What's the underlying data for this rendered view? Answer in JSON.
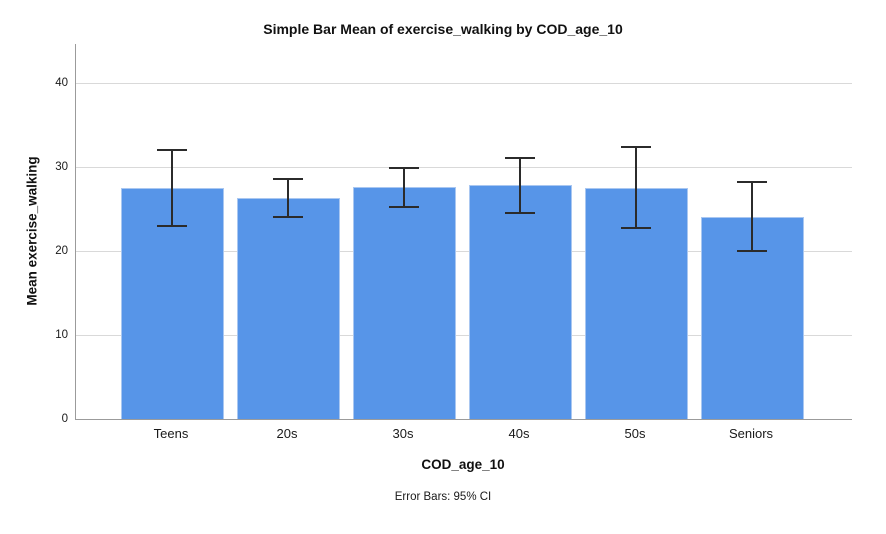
{
  "chart_data": {
    "type": "bar",
    "title": "Simple Bar Mean of exercise_walking by COD_age_10",
    "xlabel": "COD_age_10",
    "ylabel": "Mean exercise_walking",
    "footnote": "Error Bars: 95% CI",
    "categories": [
      "Teens",
      "20s",
      "30s",
      "40s",
      "50s",
      "Seniors"
    ],
    "values": [
      27.5,
      26.4,
      27.6,
      27.9,
      27.5,
      24.1
    ],
    "error_bars": {
      "label": "95% CI",
      "low": [
        23.0,
        24.1,
        25.3,
        24.6,
        22.8,
        20.0
      ],
      "high": [
        32.1,
        28.6,
        29.9,
        31.1,
        32.4,
        28.3
      ]
    },
    "yticks": [
      0,
      10,
      20,
      30,
      40
    ],
    "ylim": [
      0,
      44.7
    ],
    "grid": "horizontal-light",
    "legend": "none",
    "colors": {
      "bar_fill": "#5795E8",
      "bar_border": "#A9C7F1",
      "error_bar": "#2B2B2B",
      "gridline": "#D9D9D9",
      "axis_line": "#9B9B9B",
      "text": "#1A1A1A"
    }
  }
}
